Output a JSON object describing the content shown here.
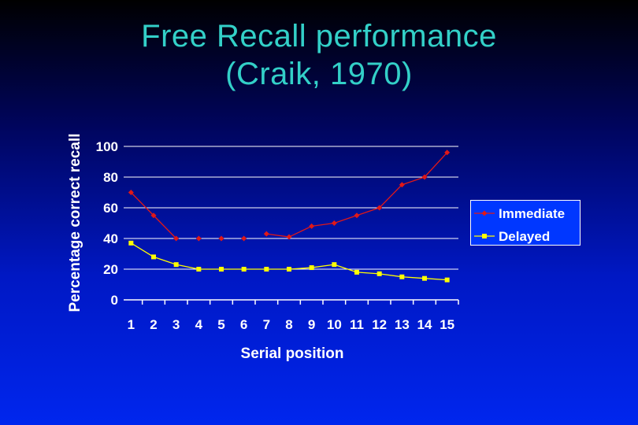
{
  "slide": {
    "title_line1": "Free Recall performance",
    "title_line2": "(Craik, 1970)"
  },
  "colors": {
    "title": "#33d0c8",
    "immediate": "#e01818",
    "delayed": "#ffff00",
    "axis_text": "#ffffff",
    "legend_bg": "#0037ff"
  },
  "chart_data": {
    "type": "line",
    "title": "",
    "xlabel": "Serial position",
    "ylabel": "Percentage correct recall",
    "categories": [
      "1",
      "2",
      "3",
      "4",
      "5",
      "6",
      "7",
      "8",
      "9",
      "10",
      "11",
      "12",
      "13",
      "14",
      "15"
    ],
    "ylim": [
      0,
      100
    ],
    "yticks": [
      0,
      20,
      40,
      60,
      80,
      100
    ],
    "grid": "horizontal",
    "legend_position": "right",
    "series": [
      {
        "name": "Immediate",
        "marker": "diamond",
        "values": [
          70,
          55,
          40,
          40,
          40,
          40,
          43,
          41,
          48,
          50,
          55,
          60,
          75,
          80,
          96
        ],
        "connected": [
          true,
          true,
          true,
          false,
          false,
          false,
          true,
          true,
          true,
          true,
          true,
          true,
          true,
          true,
          true
        ]
      },
      {
        "name": "Delayed",
        "marker": "square",
        "values": [
          37,
          28,
          23,
          20,
          20,
          20,
          20,
          20,
          21,
          23,
          18,
          17,
          15,
          14,
          13
        ],
        "connected": [
          true,
          true,
          true,
          true,
          true,
          true,
          true,
          true,
          true,
          true,
          true,
          true,
          true,
          true,
          true
        ]
      }
    ]
  }
}
